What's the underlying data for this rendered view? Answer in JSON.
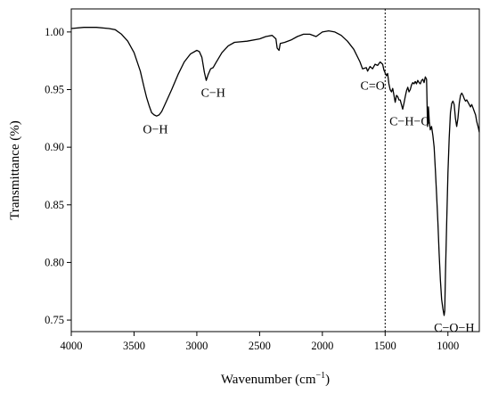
{
  "chart_data": {
    "type": "line",
    "title": "",
    "xlabel": "Wavenumber (cm",
    "xlabel_sup": "−1",
    "xlabel_end": ")",
    "ylabel": "Transmittance (%)",
    "xlim": [
      4000,
      750
    ],
    "x_reversed": true,
    "ylim": [
      0.74,
      1.02
    ],
    "x_ticks": [
      4000,
      3500,
      3000,
      2500,
      2000,
      1500,
      1000
    ],
    "y_ticks": [
      0.75,
      0.8,
      0.85,
      0.9,
      0.95,
      1.0
    ],
    "y_tick_labels": [
      "0.75",
      "0.80",
      "0.85",
      "0.90",
      "0.95",
      "1.00"
    ],
    "grid": false,
    "legend": "none",
    "reference_line": {
      "x": 1500,
      "style": "dotted"
    },
    "series": [
      {
        "points": [
          [
            4000,
            1.003
          ],
          [
            3900,
            1.004
          ],
          [
            3800,
            1.004
          ],
          [
            3700,
            1.003
          ],
          [
            3650,
            1.002
          ],
          [
            3600,
            0.998
          ],
          [
            3550,
            0.992
          ],
          [
            3500,
            0.982
          ],
          [
            3450,
            0.966
          ],
          [
            3420,
            0.952
          ],
          [
            3400,
            0.943
          ],
          [
            3380,
            0.936
          ],
          [
            3360,
            0.93
          ],
          [
            3340,
            0.928
          ],
          [
            3320,
            0.927
          ],
          [
            3300,
            0.928
          ],
          [
            3280,
            0.931
          ],
          [
            3250,
            0.938
          ],
          [
            3200,
            0.95
          ],
          [
            3150,
            0.963
          ],
          [
            3100,
            0.974
          ],
          [
            3050,
            0.981
          ],
          [
            3000,
            0.984
          ],
          [
            2980,
            0.983
          ],
          [
            2960,
            0.978
          ],
          [
            2940,
            0.965
          ],
          [
            2925,
            0.958
          ],
          [
            2910,
            0.963
          ],
          [
            2890,
            0.968
          ],
          [
            2870,
            0.969
          ],
          [
            2850,
            0.973
          ],
          [
            2800,
            0.982
          ],
          [
            2750,
            0.988
          ],
          [
            2700,
            0.991
          ],
          [
            2600,
            0.992
          ],
          [
            2500,
            0.994
          ],
          [
            2450,
            0.996
          ],
          [
            2400,
            0.997
          ],
          [
            2370,
            0.994
          ],
          [
            2360,
            0.986
          ],
          [
            2345,
            0.984
          ],
          [
            2335,
            0.99
          ],
          [
            2300,
            0.991
          ],
          [
            2250,
            0.993
          ],
          [
            2200,
            0.996
          ],
          [
            2150,
            0.998
          ],
          [
            2100,
            0.998
          ],
          [
            2050,
            0.996
          ],
          [
            2000,
            1.0
          ],
          [
            1950,
            1.001
          ],
          [
            1900,
            1.0
          ],
          [
            1850,
            0.997
          ],
          [
            1800,
            0.992
          ],
          [
            1750,
            0.985
          ],
          [
            1700,
            0.974
          ],
          [
            1680,
            0.968
          ],
          [
            1650,
            0.969
          ],
          [
            1640,
            0.966
          ],
          [
            1620,
            0.97
          ],
          [
            1600,
            0.968
          ],
          [
            1580,
            0.972
          ],
          [
            1560,
            0.971
          ],
          [
            1540,
            0.974
          ],
          [
            1520,
            0.972
          ],
          [
            1510,
            0.967
          ],
          [
            1490,
            0.962
          ],
          [
            1480,
            0.964
          ],
          [
            1470,
            0.955
          ],
          [
            1460,
            0.95
          ],
          [
            1450,
            0.948
          ],
          [
            1440,
            0.951
          ],
          [
            1430,
            0.945
          ],
          [
            1420,
            0.939
          ],
          [
            1410,
            0.945
          ],
          [
            1400,
            0.944
          ],
          [
            1390,
            0.941
          ],
          [
            1380,
            0.941
          ],
          [
            1370,
            0.937
          ],
          [
            1360,
            0.933
          ],
          [
            1350,
            0.938
          ],
          [
            1340,
            0.944
          ],
          [
            1330,
            0.949
          ],
          [
            1320,
            0.952
          ],
          [
            1310,
            0.948
          ],
          [
            1300,
            0.95
          ],
          [
            1290,
            0.954
          ],
          [
            1280,
            0.956
          ],
          [
            1270,
            0.955
          ],
          [
            1260,
            0.957
          ],
          [
            1250,
            0.955
          ],
          [
            1240,
            0.958
          ],
          [
            1230,
            0.956
          ],
          [
            1220,
            0.955
          ],
          [
            1210,
            0.958
          ],
          [
            1200,
            0.959
          ],
          [
            1190,
            0.956
          ],
          [
            1180,
            0.961
          ],
          [
            1170,
            0.959
          ],
          [
            1162,
            0.918
          ],
          [
            1155,
            0.935
          ],
          [
            1148,
            0.922
          ],
          [
            1140,
            0.915
          ],
          [
            1130,
            0.918
          ],
          [
            1120,
            0.91
          ],
          [
            1110,
            0.9
          ],
          [
            1100,
            0.88
          ],
          [
            1090,
            0.858
          ],
          [
            1080,
            0.835
          ],
          [
            1070,
            0.808
          ],
          [
            1060,
            0.785
          ],
          [
            1050,
            0.768
          ],
          [
            1040,
            0.76
          ],
          [
            1030,
            0.754
          ],
          [
            1025,
            0.758
          ],
          [
            1020,
            0.79
          ],
          [
            1010,
            0.835
          ],
          [
            1000,
            0.878
          ],
          [
            990,
            0.908
          ],
          [
            980,
            0.93
          ],
          [
            970,
            0.938
          ],
          [
            960,
            0.94
          ],
          [
            950,
            0.937
          ],
          [
            940,
            0.925
          ],
          [
            930,
            0.918
          ],
          [
            920,
            0.925
          ],
          [
            910,
            0.938
          ],
          [
            900,
            0.945
          ],
          [
            890,
            0.947
          ],
          [
            880,
            0.945
          ],
          [
            870,
            0.942
          ],
          [
            860,
            0.94
          ],
          [
            850,
            0.941
          ],
          [
            840,
            0.939
          ],
          [
            830,
            0.937
          ],
          [
            820,
            0.935
          ],
          [
            810,
            0.937
          ],
          [
            800,
            0.934
          ],
          [
            790,
            0.931
          ],
          [
            780,
            0.928
          ],
          [
            770,
            0.922
          ],
          [
            760,
            0.918
          ],
          [
            750,
            0.913
          ]
        ]
      }
    ],
    "annotations": [
      {
        "text": "O−H",
        "x": 3330,
        "y": 0.912
      },
      {
        "text": "C−H",
        "x": 2870,
        "y": 0.944
      },
      {
        "text": "C=O",
        "x": 1600,
        "y": 0.95
      },
      {
        "text": "C−H−O",
        "x": 1305,
        "y": 0.919
      },
      {
        "text": "C−O−H",
        "x": 950,
        "y": 0.74
      }
    ]
  }
}
